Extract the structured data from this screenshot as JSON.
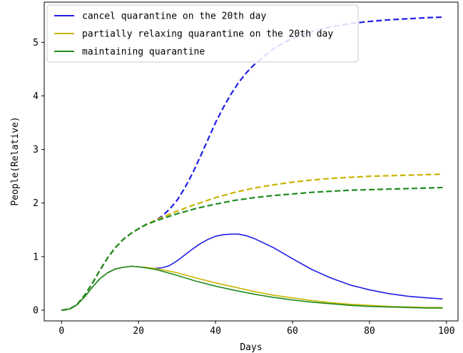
{
  "chart_data": {
    "type": "line",
    "title": "",
    "xlabel": "Days",
    "ylabel": "People(Relative)",
    "xlim": [
      -4.5,
      103
    ],
    "ylim": [
      -0.2,
      5.75
    ],
    "xticks": [
      0,
      20,
      40,
      60,
      80,
      100
    ],
    "yticks": [
      0,
      1,
      2,
      3,
      4,
      5
    ],
    "grid": false,
    "legend_position": "top-left",
    "series": [
      {
        "name": "cancel quarantine on the 20th day",
        "color": "#1f1fe6",
        "style": "solid",
        "points": [
          [
            0,
            0
          ],
          [
            2,
            0.02
          ],
          [
            4,
            0.1
          ],
          [
            6,
            0.25
          ],
          [
            8,
            0.43
          ],
          [
            10,
            0.59
          ],
          [
            12,
            0.7
          ],
          [
            14,
            0.77
          ],
          [
            16,
            0.8
          ],
          [
            18,
            0.82
          ],
          [
            20,
            0.81
          ],
          [
            22,
            0.79
          ],
          [
            24,
            0.78
          ],
          [
            26,
            0.79
          ],
          [
            28,
            0.83
          ],
          [
            30,
            0.92
          ],
          [
            32,
            1.03
          ],
          [
            34,
            1.14
          ],
          [
            36,
            1.24
          ],
          [
            38,
            1.32
          ],
          [
            40,
            1.38
          ],
          [
            42,
            1.41
          ],
          [
            44,
            1.42
          ],
          [
            46,
            1.42
          ],
          [
            48,
            1.39
          ],
          [
            50,
            1.34
          ],
          [
            55,
            1.17
          ],
          [
            60,
            0.96
          ],
          [
            65,
            0.76
          ],
          [
            70,
            0.6
          ],
          [
            75,
            0.47
          ],
          [
            80,
            0.38
          ],
          [
            85,
            0.31
          ],
          [
            90,
            0.26
          ],
          [
            95,
            0.23
          ],
          [
            99,
            0.21
          ]
        ]
      },
      {
        "name": "partially relaxing quarantine on the 20th day",
        "color": "#c8b400",
        "style": "solid",
        "points": [
          [
            0,
            0
          ],
          [
            2,
            0.02
          ],
          [
            4,
            0.1
          ],
          [
            6,
            0.25
          ],
          [
            8,
            0.43
          ],
          [
            10,
            0.59
          ],
          [
            12,
            0.7
          ],
          [
            14,
            0.77
          ],
          [
            16,
            0.8
          ],
          [
            18,
            0.82
          ],
          [
            20,
            0.81
          ],
          [
            22,
            0.8
          ],
          [
            25,
            0.77
          ],
          [
            30,
            0.7
          ],
          [
            35,
            0.6
          ],
          [
            40,
            0.51
          ],
          [
            45,
            0.43
          ],
          [
            50,
            0.35
          ],
          [
            55,
            0.28
          ],
          [
            60,
            0.23
          ],
          [
            65,
            0.18
          ],
          [
            70,
            0.14
          ],
          [
            75,
            0.11
          ],
          [
            80,
            0.09
          ],
          [
            85,
            0.07
          ],
          [
            90,
            0.06
          ],
          [
            95,
            0.05
          ],
          [
            99,
            0.05
          ]
        ]
      },
      {
        "name": "maintaining quarantine",
        "color": "#1e8c1e",
        "style": "solid",
        "points": [
          [
            0,
            0
          ],
          [
            2,
            0.02
          ],
          [
            4,
            0.1
          ],
          [
            6,
            0.25
          ],
          [
            8,
            0.43
          ],
          [
            10,
            0.59
          ],
          [
            12,
            0.7
          ],
          [
            14,
            0.77
          ],
          [
            16,
            0.8
          ],
          [
            18,
            0.82
          ],
          [
            20,
            0.81
          ],
          [
            22,
            0.79
          ],
          [
            25,
            0.75
          ],
          [
            30,
            0.65
          ],
          [
            35,
            0.54
          ],
          [
            40,
            0.45
          ],
          [
            45,
            0.37
          ],
          [
            50,
            0.3
          ],
          [
            55,
            0.24
          ],
          [
            60,
            0.19
          ],
          [
            65,
            0.15
          ],
          [
            70,
            0.12
          ],
          [
            75,
            0.09
          ],
          [
            80,
            0.07
          ],
          [
            85,
            0.06
          ],
          [
            90,
            0.05
          ],
          [
            95,
            0.04
          ],
          [
            99,
            0.04
          ]
        ]
      },
      {
        "color": "#1f1fe6",
        "style": "dashed",
        "points": [
          [
            0,
            0
          ],
          [
            2,
            0.02
          ],
          [
            4,
            0.1
          ],
          [
            6,
            0.28
          ],
          [
            8,
            0.5
          ],
          [
            10,
            0.75
          ],
          [
            12,
            0.98
          ],
          [
            14,
            1.17
          ],
          [
            16,
            1.32
          ],
          [
            18,
            1.43
          ],
          [
            20,
            1.52
          ],
          [
            22,
            1.6
          ],
          [
            24,
            1.66
          ],
          [
            26,
            1.75
          ],
          [
            28,
            1.88
          ],
          [
            30,
            2.05
          ],
          [
            32,
            2.28
          ],
          [
            34,
            2.55
          ],
          [
            36,
            2.86
          ],
          [
            38,
            3.18
          ],
          [
            40,
            3.5
          ],
          [
            42,
            3.78
          ],
          [
            44,
            4.03
          ],
          [
            46,
            4.25
          ],
          [
            48,
            4.43
          ],
          [
            50,
            4.58
          ],
          [
            55,
            4.88
          ],
          [
            60,
            5.08
          ],
          [
            65,
            5.2
          ],
          [
            70,
            5.29
          ],
          [
            75,
            5.35
          ],
          [
            80,
            5.39
          ],
          [
            85,
            5.42
          ],
          [
            90,
            5.44
          ],
          [
            95,
            5.46
          ],
          [
            99,
            5.47
          ]
        ]
      },
      {
        "color": "#c8b400",
        "style": "dashed",
        "points": [
          [
            0,
            0
          ],
          [
            2,
            0.02
          ],
          [
            4,
            0.1
          ],
          [
            6,
            0.28
          ],
          [
            8,
            0.5
          ],
          [
            10,
            0.75
          ],
          [
            12,
            0.98
          ],
          [
            14,
            1.17
          ],
          [
            16,
            1.32
          ],
          [
            18,
            1.43
          ],
          [
            20,
            1.52
          ],
          [
            22,
            1.6
          ],
          [
            25,
            1.7
          ],
          [
            30,
            1.85
          ],
          [
            35,
            1.98
          ],
          [
            40,
            2.1
          ],
          [
            45,
            2.2
          ],
          [
            50,
            2.28
          ],
          [
            55,
            2.34
          ],
          [
            60,
            2.39
          ],
          [
            65,
            2.43
          ],
          [
            70,
            2.46
          ],
          [
            75,
            2.48
          ],
          [
            80,
            2.5
          ],
          [
            85,
            2.51
          ],
          [
            90,
            2.52
          ],
          [
            95,
            2.53
          ],
          [
            99,
            2.54
          ]
        ]
      },
      {
        "color": "#1e8c1e",
        "style": "dashed",
        "points": [
          [
            0,
            0
          ],
          [
            2,
            0.02
          ],
          [
            4,
            0.1
          ],
          [
            6,
            0.28
          ],
          [
            8,
            0.5
          ],
          [
            10,
            0.75
          ],
          [
            12,
            0.98
          ],
          [
            14,
            1.17
          ],
          [
            16,
            1.32
          ],
          [
            18,
            1.43
          ],
          [
            20,
            1.52
          ],
          [
            22,
            1.6
          ],
          [
            25,
            1.68
          ],
          [
            30,
            1.8
          ],
          [
            35,
            1.9
          ],
          [
            40,
            1.98
          ],
          [
            45,
            2.05
          ],
          [
            50,
            2.1
          ],
          [
            55,
            2.14
          ],
          [
            60,
            2.17
          ],
          [
            65,
            2.2
          ],
          [
            70,
            2.22
          ],
          [
            75,
            2.24
          ],
          [
            80,
            2.25
          ],
          [
            85,
            2.26
          ],
          [
            90,
            2.27
          ],
          [
            95,
            2.28
          ],
          [
            99,
            2.29
          ]
        ]
      }
    ]
  }
}
